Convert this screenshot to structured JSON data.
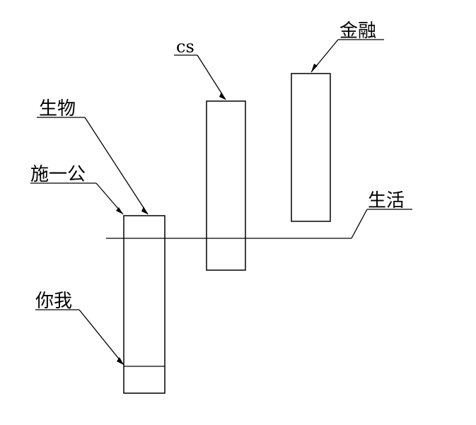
{
  "diagram": {
    "labels": {
      "shengwu": "生物",
      "shiyigong": "施一公",
      "niwo": "你我",
      "cs": "cs",
      "jinrong": "金融",
      "shenghuo": "生活"
    }
  }
}
